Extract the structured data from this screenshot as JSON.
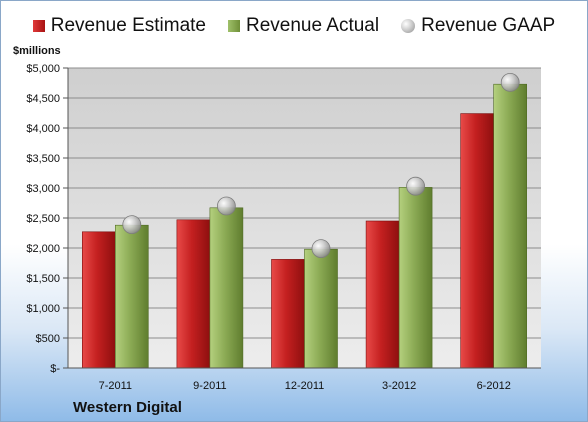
{
  "chart_data": {
    "type": "bar",
    "company": "Western Digital",
    "ylabel": "$millions",
    "categories": [
      "7-2011",
      "9-2011",
      "12-2011",
      "3-2012",
      "6-2012"
    ],
    "series": [
      {
        "name": "Revenue Estimate",
        "kind": "bar",
        "color": "#c0201f",
        "values": [
          2270,
          2470,
          1810,
          2450,
          4240
        ]
      },
      {
        "name": "Revenue Actual",
        "kind": "bar",
        "color": "#8cab55",
        "values": [
          2380,
          2670,
          1980,
          3010,
          4730
        ]
      },
      {
        "name": "Revenue GAAP",
        "kind": "marker",
        "color": "#b8b8b8",
        "values": [
          2390,
          2700,
          1990,
          3030,
          4760
        ]
      }
    ],
    "ylim": [
      0,
      5000
    ],
    "yticks": [
      0,
      500,
      1000,
      1500,
      2000,
      2500,
      3000,
      3500,
      4000,
      4500,
      5000
    ],
    "ytick_labels": [
      "$-",
      "$500",
      "$1,000",
      "$1,500",
      "$2,000",
      "$2,500",
      "$3,000",
      "$3,500",
      "$4,000",
      "$4,500",
      "$5,000"
    ],
    "grid": true,
    "legend_position": "top"
  }
}
